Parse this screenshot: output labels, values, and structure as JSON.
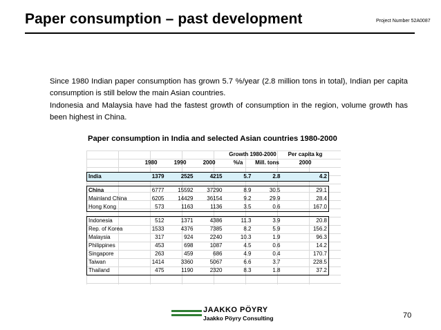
{
  "header": {
    "title": "Paper consumption – past development",
    "project_number": "Project Number 52A0087"
  },
  "body": {
    "paragraph1": "Since 1980 Indian paper consumption has grown 5.7 %/year (2.8 million tons in total), Indian per capita consumption is still below the main Asian countries.",
    "paragraph2": "Indonesia and Malaysia have had the fastest growth of consumption in the region,  volume growth has been highest in China."
  },
  "table": {
    "title": "Paper consumption in India and selected Asian countries 1980-2000",
    "group_header_growth": "Growth 1980-2000",
    "group_header_percap": "Per capita kg",
    "columns": [
      "1980",
      "1990",
      "2000",
      "%/a",
      "Mill. tons",
      "2000"
    ],
    "india": {
      "label": "India",
      "values": [
        "1379",
        "2525",
        "4215",
        "5.7",
        "2.8",
        "4.2"
      ]
    },
    "group1": [
      {
        "label": "China",
        "values": [
          "6777",
          "15592",
          "37290",
          "8.9",
          "30.5",
          "29.1"
        ]
      },
      {
        "label": "Mainland China",
        "values": [
          "6205",
          "14429",
          "36154",
          "9.2",
          "29.9",
          "28.4"
        ]
      },
      {
        "label": "Hong Kong",
        "values": [
          "573",
          "1163",
          "1136",
          "3.5",
          "0.6",
          "167.0"
        ]
      }
    ],
    "group2": [
      {
        "label": "Indonesia",
        "values": [
          "512",
          "1371",
          "4386",
          "11.3",
          "3.9",
          "20.8"
        ]
      },
      {
        "label": "Rep. of Korea",
        "values": [
          "1533",
          "4376",
          "7385",
          "8.2",
          "5.9",
          "156.2"
        ]
      },
      {
        "label": "Malaysia",
        "values": [
          "317",
          "924",
          "2240",
          "10.3",
          "1.9",
          "96.3"
        ]
      },
      {
        "label": "Philippines",
        "values": [
          "453",
          "698",
          "1087",
          "4.5",
          "0.6",
          "14.2"
        ]
      },
      {
        "label": "Singapore",
        "values": [
          "263",
          "459",
          "686",
          "4.9",
          "0.4",
          "170.7"
        ]
      },
      {
        "label": "Taiwan",
        "values": [
          "1414",
          "3360",
          "5067",
          "6.6",
          "3.7",
          "228.5"
        ]
      },
      {
        "label": "Thailand",
        "values": [
          "475",
          "1190",
          "2320",
          "8.3",
          "1.8",
          "37.2"
        ]
      }
    ]
  },
  "footer": {
    "logo_main": "JAAKKO PÖYRY",
    "logo_sub": "Jaakko Pöyry Consulting",
    "page_number": "70"
  }
}
